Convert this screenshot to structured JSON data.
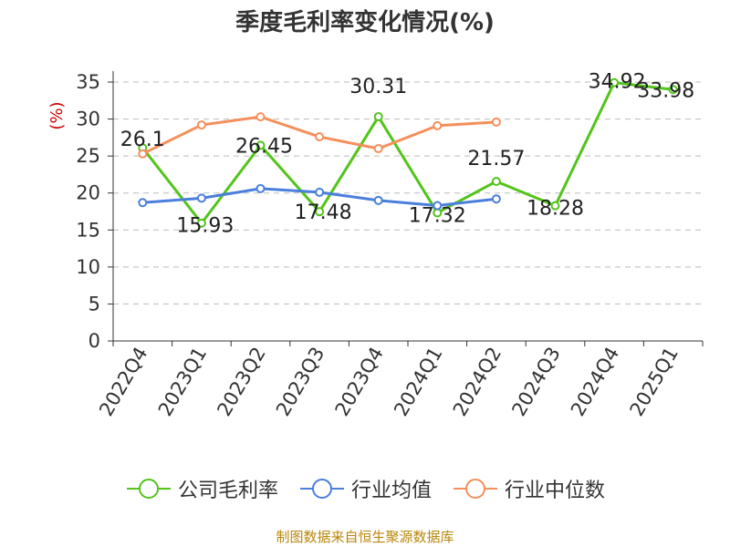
{
  "chart_data": {
    "type": "line",
    "title": "季度毛利率变化情况(%)",
    "ylabel": "(%)",
    "ylim": [
      0,
      35
    ],
    "yticks": [
      0,
      5,
      10,
      15,
      20,
      25,
      30,
      35
    ],
    "grid": true,
    "legend_position": "bottom",
    "categories": [
      "2022Q4",
      "2023Q1",
      "2023Q2",
      "2023Q3",
      "2023Q4",
      "2024Q1",
      "2024Q2",
      "2024Q3",
      "2024Q4",
      "2025Q1"
    ],
    "series": [
      {
        "name": "公司毛利率",
        "color": "#52c41a",
        "values": [
          26.1,
          15.93,
          26.45,
          17.48,
          30.31,
          17.32,
          21.57,
          18.28,
          34.92,
          33.98
        ],
        "labels": [
          "26.1",
          "15.93",
          "26.45",
          "17.48",
          "30.31",
          "17.32",
          "21.57",
          "18.28",
          "34.92",
          "33.98"
        ]
      },
      {
        "name": "行业均值",
        "color": "#4a7fdb",
        "values": [
          18.7,
          19.3,
          20.6,
          20.1,
          19.0,
          18.3,
          19.2,
          null,
          null,
          null
        ]
      },
      {
        "name": "行业中位数",
        "color": "#f58f5b",
        "values": [
          25.3,
          29.2,
          30.3,
          27.6,
          26.0,
          29.1,
          29.6,
          null,
          null,
          null
        ]
      }
    ]
  },
  "source": "制图数据来自恒生聚源数据库"
}
